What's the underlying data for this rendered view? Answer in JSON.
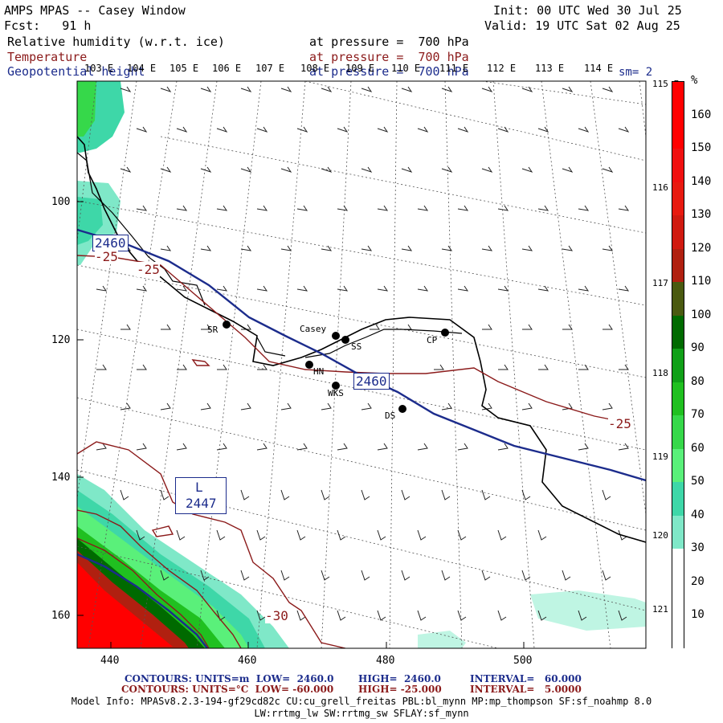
{
  "header": {
    "title": "AMPS MPAS -- Casey Window",
    "fcst": "Fcst:   91 h",
    "init": "Init: 00 UTC Wed 30 Jul 25",
    "valid": "Valid: 19 UTC Sat 02 Aug 25",
    "fields": [
      {
        "name": "Relative humidity (w.r.t. ice)",
        "level": "at pressure =  700 hPa",
        "color": "#000000"
      },
      {
        "name": "Temperature",
        "level": "at pressure =  700 hPa",
        "color": "#8b1a1a"
      },
      {
        "name": "Geopotential height",
        "level": "at pressure =  700 hPa",
        "color": "#1c2c8c"
      }
    ],
    "sm": "sm= 2"
  },
  "map": {
    "lon_labels": [
      "103 E",
      "104 E",
      "105 E",
      "106 E",
      "107 E",
      "108 E",
      "109 E",
      "110 E",
      "111 E",
      "112 E",
      "113 E",
      "114 E"
    ],
    "lon_right": [
      "115 E",
      "116 E",
      "117 E",
      "118 E",
      "119 E",
      "120 E",
      "121 E"
    ],
    "y_labels": [
      "100",
      "120",
      "140",
      "160"
    ],
    "x_labels": [
      "440",
      "460",
      "480",
      "500"
    ],
    "stations": [
      {
        "code": "SR"
      },
      {
        "code": "Casey"
      },
      {
        "code": "SS"
      },
      {
        "code": "CP"
      },
      {
        "code": "HN"
      },
      {
        "code": "WKS"
      },
      {
        "code": "DS"
      }
    ],
    "height_labels": [
      "2460",
      "2460"
    ],
    "low": {
      "letter": "L",
      "value": "2447"
    },
    "temp_labels": [
      "-25",
      "-25",
      "-25",
      "-30"
    ]
  },
  "colorbar": {
    "unit": "%",
    "levels": [
      "10",
      "20",
      "30",
      "40",
      "50",
      "60",
      "70",
      "80",
      "90",
      "100",
      "110",
      "120",
      "130",
      "140",
      "150",
      "160"
    ],
    "colors": [
      "#ffffff",
      "#ffffff",
      "#ffffff",
      "#7fe8c8",
      "#3ed7a8",
      "#5af07a",
      "#36d84a",
      "#20c020",
      "#10a018",
      "#006a00",
      "#4a5a10",
      "#b02010",
      "#d01a10",
      "#e81a10",
      "#f01010",
      "#ff0000"
    ]
  },
  "footer": {
    "line1": {
      "left": "CONTOURS: UNITS=m  LOW=  2460.0",
      "mid": "HIGH=  2460.0",
      "right": "INTERVAL=   60.000"
    },
    "line2": {
      "left": "CONTOURS: UNITS=°C  LOW= -60.000",
      "mid": "HIGH= -25.000",
      "right": "INTERVAL=   5.0000"
    },
    "model1": "Model Info: MPASv8.2.3-194-gf29cd82c CU:cu_grell_freitas PBL:bl_mynn MP:mp_thompson SF:sf_noahmp 8.0",
    "model2": "LW:rrtmg_lw SW:rrtmg_sw SFLAY:sf_mynn"
  }
}
